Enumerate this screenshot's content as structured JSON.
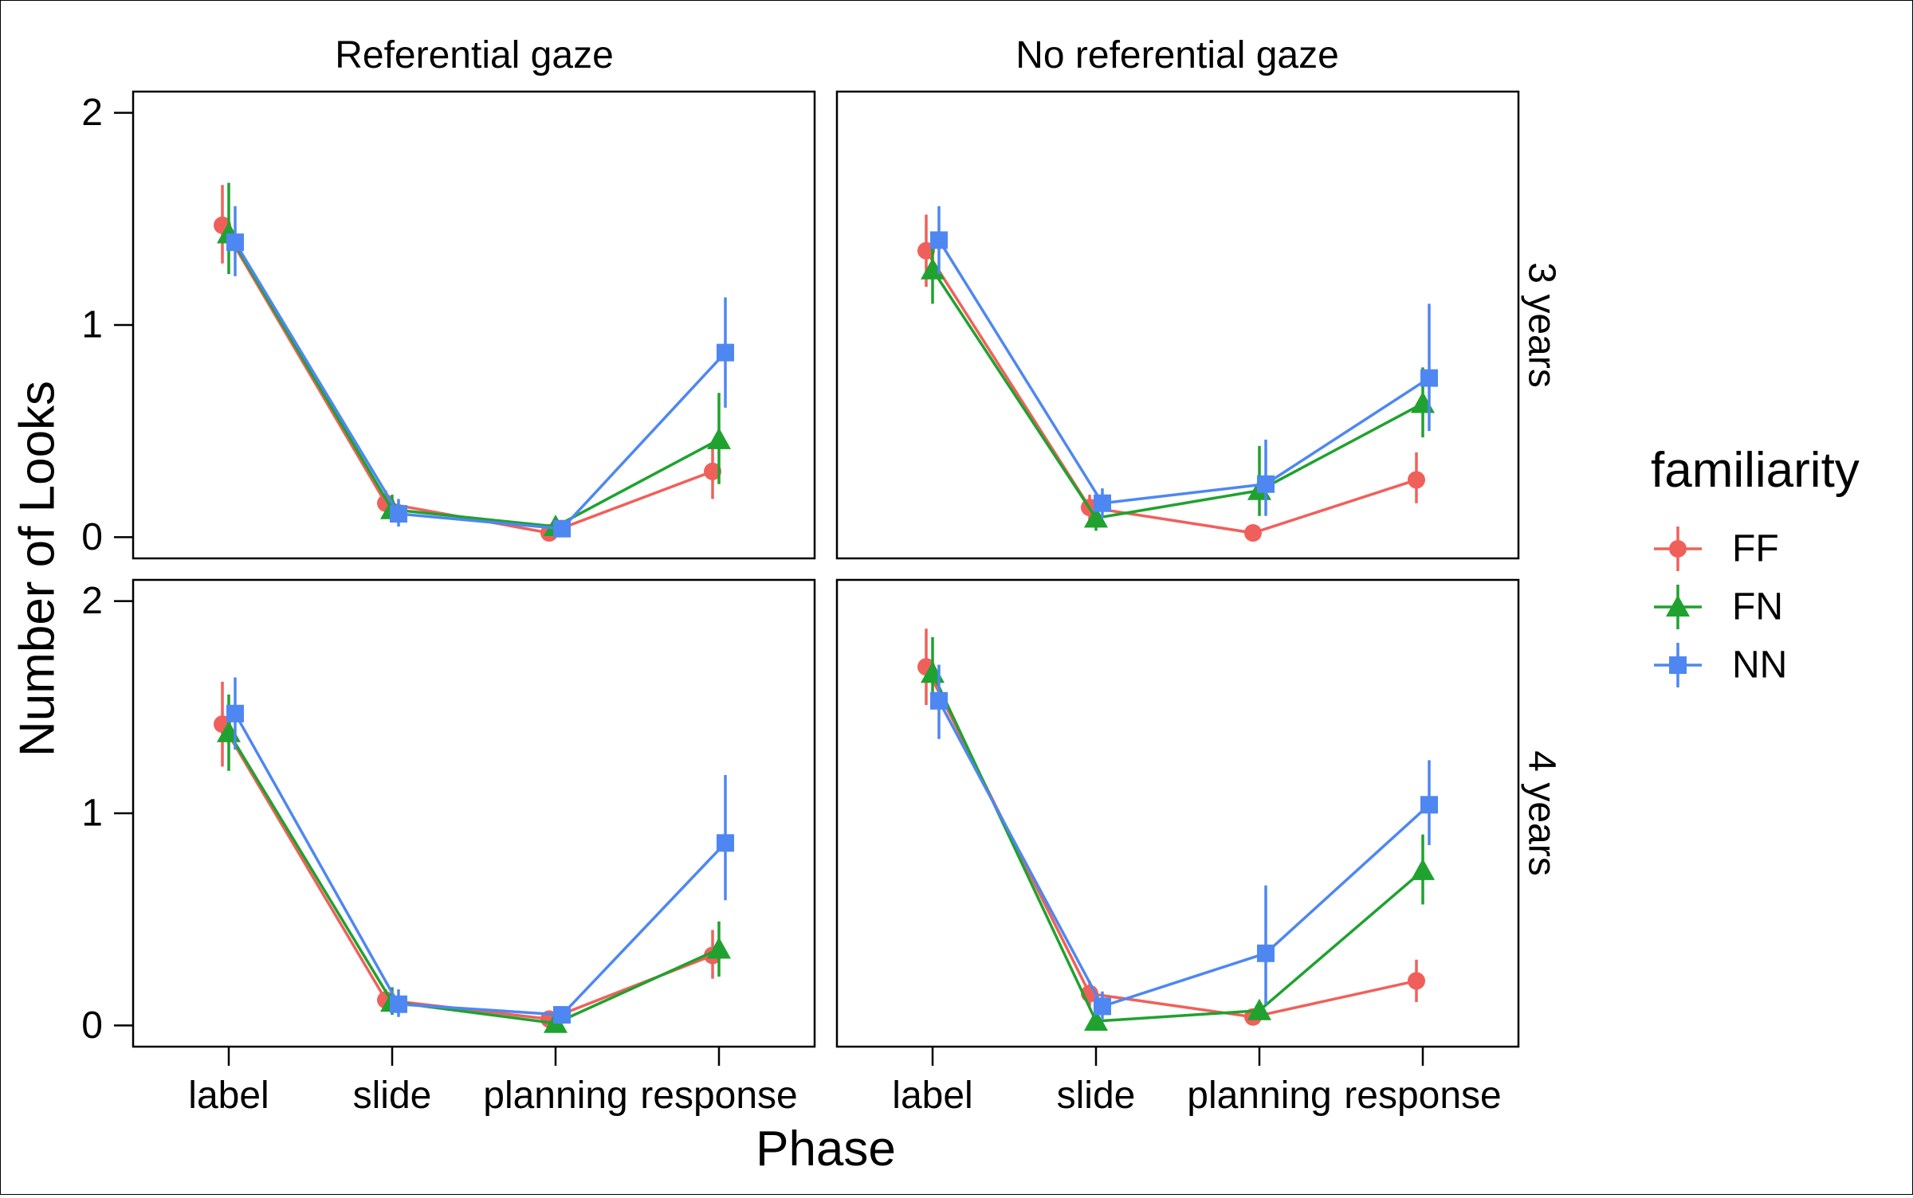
{
  "chart_data": {
    "type": "line",
    "xlabel": "Phase",
    "ylabel": "Number of Looks",
    "categories": [
      "label",
      "slide",
      "planning",
      "response"
    ],
    "ylim": [
      -0.1,
      2.1
    ],
    "y_ticks": [
      0,
      1,
      2
    ],
    "grid": false,
    "legend": {
      "title": "familiarity",
      "placement": "right",
      "entries": [
        {
          "name": "FF",
          "color": "#F0605A",
          "marker": "circle"
        },
        {
          "name": "FN",
          "color": "#1FA22F",
          "marker": "triangle"
        },
        {
          "name": "NN",
          "color": "#4E87F2",
          "marker": "square"
        }
      ]
    },
    "column_facets": [
      "Referential gaze",
      "No referential gaze"
    ],
    "row_facets": [
      "3 years",
      "4 years"
    ],
    "panels": [
      {
        "column": "Referential gaze",
        "row": "3 years",
        "series": [
          {
            "name": "FF",
            "values": [
              1.47,
              0.16,
              0.02,
              0.31
            ],
            "lower": [
              1.29,
              0.1,
              0.0,
              0.18
            ],
            "upper": [
              1.66,
              0.22,
              0.05,
              0.44
            ]
          },
          {
            "name": "FN",
            "values": [
              1.43,
              0.13,
              0.05,
              0.46
            ],
            "lower": [
              1.24,
              0.07,
              0.02,
              0.25
            ],
            "upper": [
              1.67,
              0.2,
              0.08,
              0.68
            ]
          },
          {
            "name": "NN",
            "values": [
              1.39,
              0.11,
              0.04,
              0.87
            ],
            "lower": [
              1.23,
              0.05,
              0.01,
              0.61
            ],
            "upper": [
              1.56,
              0.18,
              0.07,
              1.13
            ]
          }
        ]
      },
      {
        "column": "No referential gaze",
        "row": "3 years",
        "series": [
          {
            "name": "FF",
            "values": [
              1.35,
              0.14,
              0.02,
              0.27
            ],
            "lower": [
              1.18,
              0.08,
              0.0,
              0.16
            ],
            "upper": [
              1.52,
              0.2,
              0.05,
              0.4
            ]
          },
          {
            "name": "FN",
            "values": [
              1.26,
              0.09,
              0.22,
              0.63
            ],
            "lower": [
              1.1,
              0.03,
              0.1,
              0.47
            ],
            "upper": [
              1.43,
              0.15,
              0.43,
              0.8
            ]
          },
          {
            "name": "NN",
            "values": [
              1.4,
              0.16,
              0.25,
              0.75
            ],
            "lower": [
              1.24,
              0.09,
              0.1,
              0.5
            ],
            "upper": [
              1.56,
              0.23,
              0.46,
              1.1
            ]
          }
        ]
      },
      {
        "column": "Referential gaze",
        "row": "4 years",
        "series": [
          {
            "name": "FF",
            "values": [
              1.42,
              0.12,
              0.03,
              0.33
            ],
            "lower": [
              1.22,
              0.07,
              0.0,
              0.22
            ],
            "upper": [
              1.62,
              0.17,
              0.06,
              0.45
            ]
          },
          {
            "name": "FN",
            "values": [
              1.38,
              0.11,
              0.01,
              0.36
            ],
            "lower": [
              1.2,
              0.05,
              0.0,
              0.23
            ],
            "upper": [
              1.56,
              0.18,
              0.03,
              0.49
            ]
          },
          {
            "name": "NN",
            "values": [
              1.47,
              0.1,
              0.05,
              0.86
            ],
            "lower": [
              1.3,
              0.04,
              0.02,
              0.59
            ],
            "upper": [
              1.64,
              0.17,
              0.08,
              1.18
            ]
          }
        ]
      },
      {
        "column": "No referential gaze",
        "row": "4 years",
        "series": [
          {
            "name": "FF",
            "values": [
              1.69,
              0.15,
              0.04,
              0.21
            ],
            "lower": [
              1.51,
              0.09,
              0.01,
              0.11
            ],
            "upper": [
              1.87,
              0.21,
              0.07,
              0.31
            ]
          },
          {
            "name": "FN",
            "values": [
              1.66,
              0.02,
              0.07,
              0.73
            ],
            "lower": [
              1.5,
              0.0,
              0.03,
              0.57
            ],
            "upper": [
              1.83,
              0.05,
              0.11,
              0.9
            ]
          },
          {
            "name": "NN",
            "values": [
              1.53,
              0.09,
              0.34,
              1.04
            ],
            "lower": [
              1.35,
              0.03,
              0.1,
              0.85
            ],
            "upper": [
              1.7,
              0.16,
              0.66,
              1.25
            ]
          }
        ]
      }
    ]
  }
}
